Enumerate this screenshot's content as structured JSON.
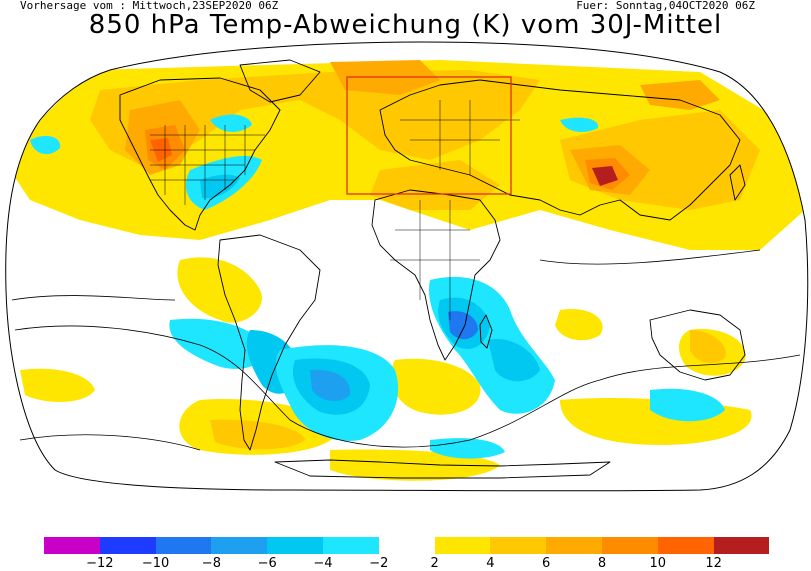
{
  "header": {
    "forecast_from": "Vorhersage vom : Mittwoch,23SEP2020 06Z",
    "valid_for": "Fuer: Sonntag,04OCT2020 06Z",
    "title": "850 hPa Temp-Abweichung (K) vom 30J-Mittel"
  },
  "map": {
    "projection": "world",
    "field": "temperature anomaly",
    "highlight_region": "Europe",
    "coastline_color": "#000000",
    "highlight_color": "#e0301e"
  },
  "legend": {
    "items": [
      {
        "color": "#c800c8",
        "tick": "−12"
      },
      {
        "color": "#1e3cff",
        "tick": "−10"
      },
      {
        "color": "#1f78f0",
        "tick": "−8"
      },
      {
        "color": "#1ea0f0",
        "tick": "−6"
      },
      {
        "color": "#00c8f0",
        "tick": "−4"
      },
      {
        "color": "#1ee6ff",
        "tick": "−2"
      },
      {
        "color": "#ffffff",
        "tick": ""
      },
      {
        "color": "#ffe600",
        "tick": "2"
      },
      {
        "color": "#ffc800",
        "tick": "4"
      },
      {
        "color": "#ffaa00",
        "tick": "6"
      },
      {
        "color": "#ff8c00",
        "tick": "8"
      },
      {
        "color": "#ff6400",
        "tick": "10"
      },
      {
        "color": "#b41e1e",
        "tick": "12"
      }
    ]
  }
}
